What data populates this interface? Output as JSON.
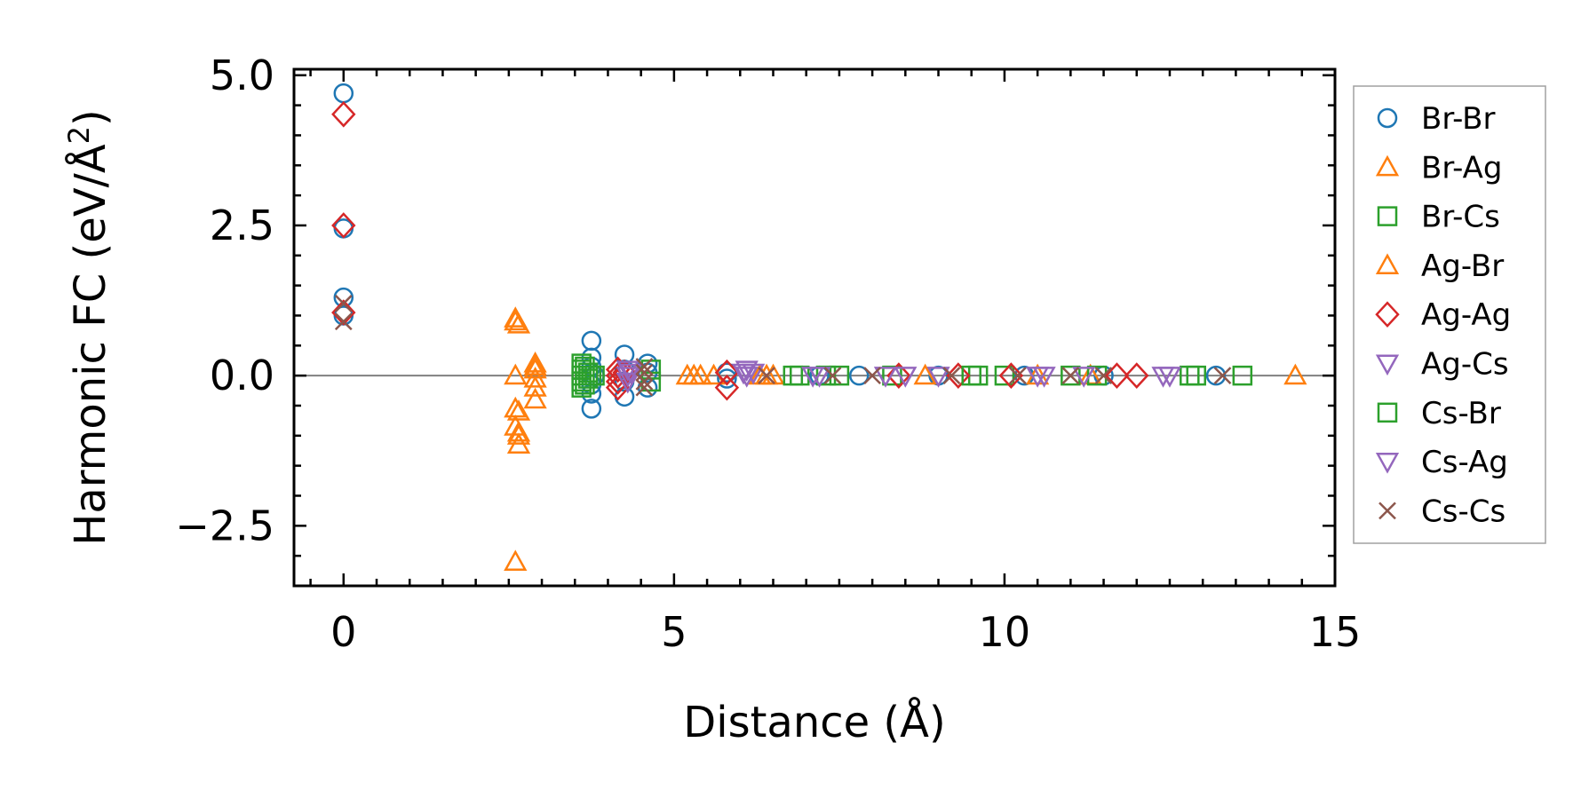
{
  "chart_data": {
    "type": "scatter",
    "title": "",
    "xlabel": "Distance (Å)",
    "ylabel_main": "Harmonic FC (eV/Å",
    "ylabel_sup": "2",
    "ylabel_close": ")",
    "xlim": [
      -0.75,
      15.0
    ],
    "ylim": [
      -3.5,
      5.1
    ],
    "xticks": [
      0,
      5,
      10,
      15
    ],
    "xtick_labels": [
      "0",
      "5",
      "10",
      "15"
    ],
    "yticks": [
      -2.5,
      0.0,
      2.5,
      5.0
    ],
    "ytick_labels": [
      "−2.5",
      "0.0",
      "2.5",
      "5.0"
    ],
    "zero_line": true,
    "grid": false,
    "legend_position": "outside-right",
    "series": [
      {
        "name": "Br-Br",
        "marker": "circle",
        "color": "#1f77b4",
        "points": [
          [
            0,
            4.7
          ],
          [
            0,
            2.45
          ],
          [
            0,
            1.3
          ],
          [
            0,
            1.0
          ],
          [
            3.75,
            0.58
          ],
          [
            3.75,
            -0.55
          ],
          [
            3.75,
            0.3
          ],
          [
            3.75,
            -0.3
          ],
          [
            3.75,
            0.15
          ],
          [
            3.75,
            -0.15
          ],
          [
            3.8,
            0.0
          ],
          [
            4.25,
            0.35
          ],
          [
            4.25,
            -0.35
          ],
          [
            4.25,
            0.1
          ],
          [
            4.25,
            -0.1
          ],
          [
            4.6,
            0.2
          ],
          [
            4.6,
            -0.2
          ],
          [
            4.6,
            0.05
          ],
          [
            5.8,
            0.05
          ],
          [
            5.8,
            -0.05
          ],
          [
            7.2,
            0.0
          ],
          [
            7.8,
            0.0
          ],
          [
            9.0,
            0.0
          ],
          [
            10.3,
            0.0
          ],
          [
            11.5,
            0.0
          ],
          [
            13.2,
            0.0
          ]
        ]
      },
      {
        "name": "Br-Ag",
        "marker": "triangle-up",
        "color": "#ff7f0e",
        "points": [
          [
            2.6,
            0.95
          ],
          [
            2.65,
            0.85
          ],
          [
            2.6,
            0.0
          ],
          [
            2.6,
            -0.55
          ],
          [
            2.6,
            -0.85
          ],
          [
            2.65,
            -0.95
          ],
          [
            2.65,
            -1.15
          ],
          [
            2.6,
            -3.1
          ],
          [
            2.9,
            0.2
          ],
          [
            2.9,
            0.1
          ],
          [
            2.9,
            -0.05
          ],
          [
            2.9,
            -0.2
          ],
          [
            2.9,
            -0.4
          ],
          [
            5.2,
            0.0
          ],
          [
            5.4,
            0.0
          ],
          [
            5.6,
            0.0
          ],
          [
            6.3,
            0.0
          ],
          [
            6.5,
            0.0
          ],
          [
            8.8,
            0.0
          ],
          [
            10.5,
            0.0
          ],
          [
            11.3,
            0.0
          ],
          [
            14.4,
            0.0
          ]
        ]
      },
      {
        "name": "Br-Cs",
        "marker": "square",
        "color": "#2ca02c",
        "points": [
          [
            3.6,
            0.2
          ],
          [
            3.6,
            0.1
          ],
          [
            3.6,
            0.0
          ],
          [
            3.6,
            -0.1
          ],
          [
            3.6,
            -0.2
          ],
          [
            3.7,
            0.05
          ],
          [
            3.7,
            -0.05
          ],
          [
            3.8,
            0.0
          ],
          [
            4.65,
            0.1
          ],
          [
            4.65,
            -0.1
          ],
          [
            6.8,
            0.0
          ],
          [
            7.3,
            0.0
          ],
          [
            7.5,
            0.0
          ],
          [
            8.3,
            0.0
          ],
          [
            9.6,
            0.0
          ],
          [
            10.0,
            0.0
          ],
          [
            11.0,
            0.0
          ],
          [
            11.4,
            0.0
          ],
          [
            12.8,
            0.0
          ],
          [
            13.6,
            0.0
          ]
        ]
      },
      {
        "name": "Ag-Br",
        "marker": "triangle-up",
        "color": "#ff7f0e",
        "points": [
          [
            2.6,
            0.9
          ],
          [
            2.65,
            -0.6
          ],
          [
            2.65,
            -1.0
          ],
          [
            2.9,
            0.15
          ],
          [
            5.3,
            0.0
          ],
          [
            6.4,
            0.0
          ]
        ]
      },
      {
        "name": "Ag-Ag",
        "marker": "diamond",
        "color": "#d62728",
        "points": [
          [
            0,
            4.35
          ],
          [
            0,
            2.5
          ],
          [
            0,
            1.05
          ],
          [
            4.15,
            0.1
          ],
          [
            4.15,
            0.0
          ],
          [
            4.15,
            -0.1
          ],
          [
            4.15,
            -0.2
          ],
          [
            4.25,
            0.05
          ],
          [
            5.8,
            0.05
          ],
          [
            5.8,
            -0.2
          ],
          [
            8.4,
            0.0
          ],
          [
            9.3,
            0.0
          ],
          [
            10.1,
            0.0
          ],
          [
            11.7,
            0.0
          ],
          [
            12.0,
            0.0
          ]
        ]
      },
      {
        "name": "Ag-Cs",
        "marker": "triangle-down",
        "color": "#9467bd",
        "points": [
          [
            4.3,
            0.1
          ],
          [
            4.3,
            -0.1
          ],
          [
            4.3,
            0.0
          ],
          [
            6.1,
            0.1
          ],
          [
            6.1,
            0.0
          ],
          [
            6.2,
            0.05
          ],
          [
            7.2,
            0.0
          ],
          [
            8.2,
            0.0
          ],
          [
            9.0,
            0.0
          ],
          [
            10.5,
            0.0
          ],
          [
            11.2,
            0.0
          ],
          [
            12.5,
            0.0
          ]
        ]
      },
      {
        "name": "Cs-Br",
        "marker": "square",
        "color": "#2ca02c",
        "points": [
          [
            3.65,
            0.15
          ],
          [
            3.65,
            -0.15
          ],
          [
            3.75,
            0.0
          ],
          [
            6.9,
            0.0
          ],
          [
            9.5,
            0.0
          ],
          [
            12.9,
            0.0
          ]
        ]
      },
      {
        "name": "Cs-Ag",
        "marker": "triangle-down",
        "color": "#9467bd",
        "points": [
          [
            4.35,
            0.05
          ],
          [
            6.05,
            0.05
          ],
          [
            7.1,
            0.0
          ],
          [
            8.5,
            0.0
          ],
          [
            10.6,
            0.0
          ],
          [
            12.4,
            0.0
          ]
        ]
      },
      {
        "name": "Cs-Cs",
        "marker": "x",
        "color": "#8c564b",
        "points": [
          [
            0,
            1.2
          ],
          [
            0,
            0.9
          ],
          [
            4.55,
            0.15
          ],
          [
            4.55,
            0.05
          ],
          [
            4.55,
            -0.1
          ],
          [
            4.55,
            -0.2
          ],
          [
            6.4,
            0.0
          ],
          [
            7.4,
            0.0
          ],
          [
            8.0,
            0.0
          ],
          [
            9.2,
            0.0
          ],
          [
            10.2,
            0.0
          ],
          [
            11.0,
            0.0
          ],
          [
            11.5,
            0.0
          ],
          [
            13.3,
            0.0
          ]
        ]
      }
    ]
  }
}
